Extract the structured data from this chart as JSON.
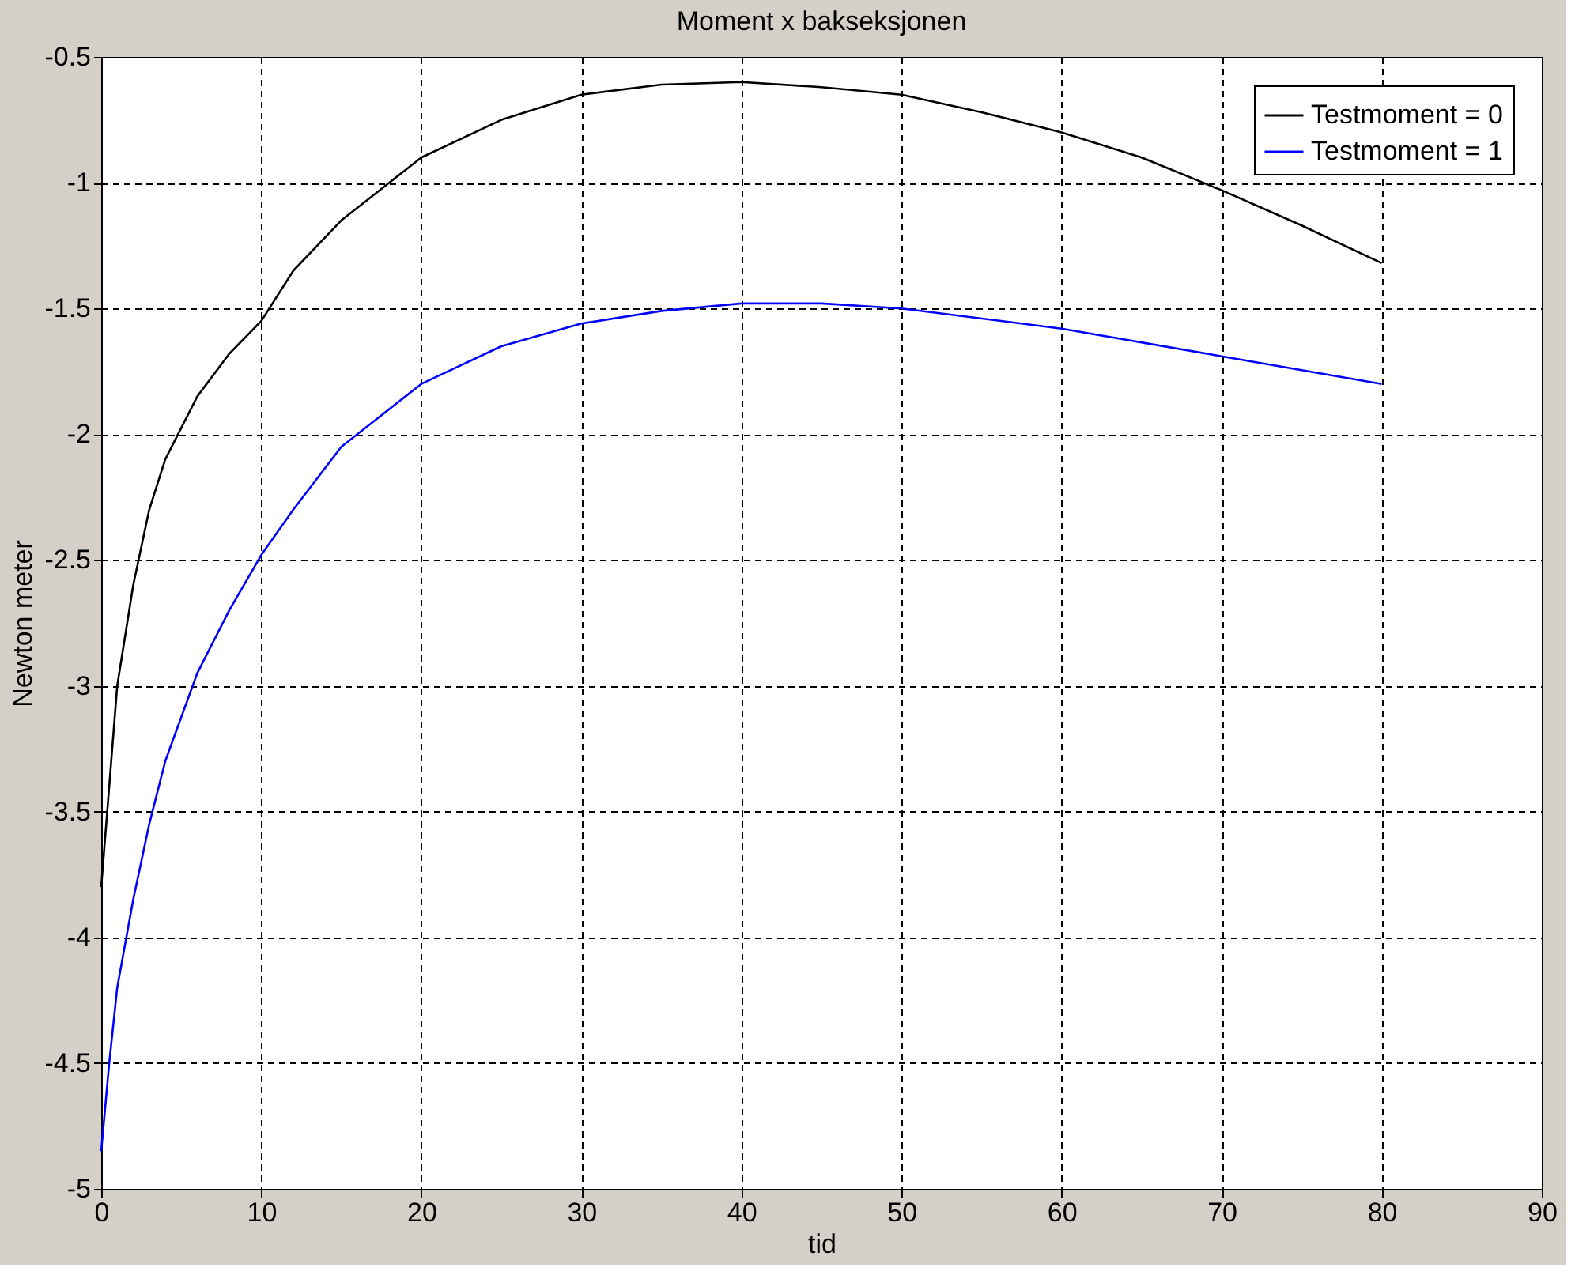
{
  "chart_data": {
    "type": "line",
    "title": "Moment x bakseksjonen",
    "xlabel": "tid",
    "ylabel": "Newton meter",
    "xlim": [
      0,
      90
    ],
    "xticks": [
      0,
      10,
      20,
      30,
      40,
      50,
      60,
      70,
      80,
      90
    ],
    "ylim": [
      -5,
      -0.5
    ],
    "yticks": [
      -5,
      -4.5,
      -4,
      -3.5,
      -3,
      -2.5,
      -2,
      -1.5,
      -1,
      -0.5
    ],
    "grid": true,
    "legend": "top right",
    "line_style": "solid",
    "marker": "none",
    "series": [
      {
        "name": "Testmoment = 0",
        "color": "#000000",
        "x": [
          0,
          0.5,
          1,
          2,
          3,
          4,
          6,
          8,
          10,
          12,
          15,
          17,
          20,
          25,
          30,
          35,
          40,
          45,
          50,
          55,
          60,
          65,
          70,
          75,
          80
        ],
        "values": [
          -3.8,
          -3.4,
          -3.0,
          -2.6,
          -2.3,
          -2.1,
          -1.85,
          -1.68,
          -1.55,
          -1.35,
          -1.15,
          -1.05,
          -0.9,
          -0.75,
          -0.65,
          -0.61,
          -0.6,
          -0.62,
          -0.65,
          -0.72,
          -0.8,
          -0.9,
          -1.03,
          -1.17,
          -1.32
        ]
      },
      {
        "name": "Testmoment = 1",
        "color": "#0000ff",
        "x": [
          0,
          0.5,
          1,
          2,
          3,
          4,
          6,
          8,
          10,
          12,
          15,
          20,
          25,
          30,
          35,
          40,
          45,
          50,
          60,
          70,
          80
        ],
        "values": [
          -4.85,
          -4.5,
          -4.2,
          -3.85,
          -3.55,
          -3.3,
          -2.95,
          -2.7,
          -2.48,
          -2.3,
          -2.05,
          -1.8,
          -1.65,
          -1.56,
          -1.51,
          -1.48,
          -1.48,
          -1.5,
          -1.58,
          -1.69,
          -1.8
        ]
      }
    ]
  }
}
